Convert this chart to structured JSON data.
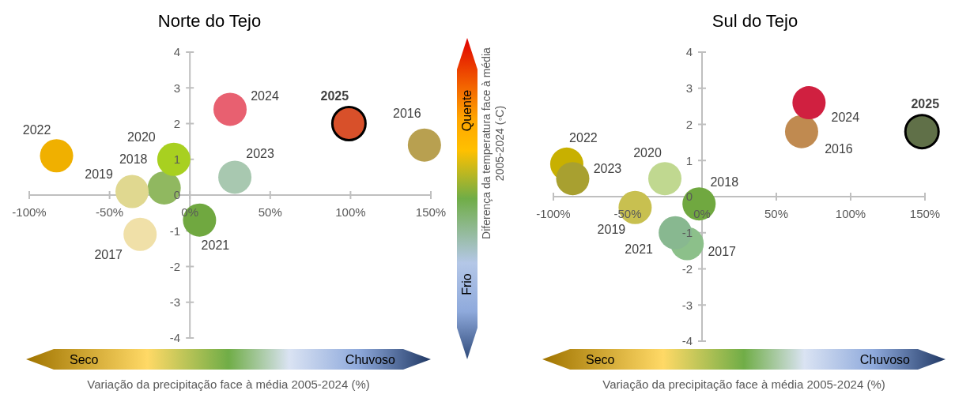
{
  "chart_data": [
    {
      "type": "scatter",
      "title": "Norte do Tejo",
      "xlabel": "Variação da precipitação face à média 2005-2024 (%)",
      "ylabel": "Diferença da temperatura face à média 2005-2024 (◦C)",
      "xlim": [
        -100,
        150
      ],
      "xticks": [
        {
          "value": -100,
          "label": "-100%"
        },
        {
          "value": -50,
          "label": "-50%"
        },
        {
          "value": 0,
          "label": "0%"
        },
        {
          "value": 50,
          "label": "50%"
        },
        {
          "value": 100,
          "label": "100%"
        },
        {
          "value": 150,
          "label": "150%"
        }
      ],
      "ylim": [
        -4,
        4
      ],
      "yticks": [
        -4,
        -3,
        -2,
        -1,
        0,
        1,
        2,
        3,
        4
      ],
      "marker": "circle",
      "series": [
        {
          "x": [
            146,
            -31,
            -16,
            -36,
            -10,
            6,
            -83,
            28,
            25
          ],
          "values": [
            1.4,
            -1.1,
            0.2,
            0.1,
            1.0,
            -0.7,
            1.1,
            0.5,
            2.4
          ],
          "colors": [
            "#b8a050",
            "#f0e0a8",
            "#90b860",
            "#e0d890",
            "#a8d020",
            "#70a840",
            "#f0b000",
            "#a8c8b0",
            "#e86070"
          ]
        },
        {
          "x": [
            99
          ],
          "values": [
            2.0
          ],
          "colors": [
            "#d8502a"
          ]
        }
      ],
      "annotations": [
        {
          "text": "2016",
          "x": 146,
          "y": 1.4
        },
        {
          "text": "2017",
          "x": -31,
          "y": -1.1
        },
        {
          "text": "2018",
          "x": -16,
          "y": 0.2
        },
        {
          "text": "2019",
          "x": -36,
          "y": 0.1
        },
        {
          "text": "2020",
          "x": -10,
          "y": 1.0
        },
        {
          "text": "2021",
          "x": 6,
          "y": -0.7
        },
        {
          "text": "2022",
          "x": -83,
          "y": 1.1
        },
        {
          "text": "2023",
          "x": 28,
          "y": 0.5
        },
        {
          "text": "2024",
          "x": 25,
          "y": 2.4
        },
        {
          "text": "2025",
          "x": 99,
          "y": 2.0
        },
        "Seco",
        "Chuvoso",
        "Quente",
        "Frio"
      ]
    },
    {
      "type": "scatter",
      "title": "Sul do Tejo",
      "xlabel": "Variação da precipitação face à média 2005-2024 (%)",
      "xlim": [
        -100,
        150
      ],
      "xticks": [
        {
          "value": -100,
          "label": "-100%"
        },
        {
          "value": -50,
          "label": "-50%"
        },
        {
          "value": 0,
          "label": "0%"
        },
        {
          "value": 50,
          "label": "50%"
        },
        {
          "value": 100,
          "label": "100%"
        },
        {
          "value": 150,
          "label": "150%"
        }
      ],
      "ylim": [
        -4,
        4
      ],
      "yticks": [
        -4,
        -3,
        -2,
        -1,
        0,
        1,
        2,
        3,
        4
      ],
      "marker": "circle",
      "series": [
        {
          "x": [
            67,
            -10,
            -2,
            -45,
            -25,
            -18,
            -91,
            -87,
            72
          ],
          "values": [
            1.8,
            -1.3,
            -0.2,
            -0.3,
            0.5,
            -1.0,
            0.9,
            0.5,
            2.6
          ],
          "colors": [
            "#c08a50",
            "#8cc08a",
            "#70a840",
            "#c8c050",
            "#c0d890",
            "#88b890",
            "#c8b000",
            "#a8a030",
            "#d02040"
          ]
        },
        {
          "x": [
            148
          ],
          "values": [
            1.8
          ],
          "colors": [
            "#607048"
          ]
        }
      ],
      "annotations": [
        {
          "text": "2016",
          "x": 67,
          "y": 1.8
        },
        {
          "text": "2017",
          "x": -10,
          "y": -1.3
        },
        {
          "text": "2018",
          "x": -2,
          "y": -0.2
        },
        {
          "text": "2019",
          "x": -45,
          "y": -0.3
        },
        {
          "text": "2020",
          "x": -25,
          "y": 0.5
        },
        {
          "text": "2021",
          "x": -18,
          "y": -1.0
        },
        {
          "text": "2022",
          "x": -91,
          "y": 0.9
        },
        {
          "text": "2023",
          "x": -87,
          "y": 0.5
        },
        {
          "text": "2024",
          "x": 72,
          "y": 2.6
        },
        {
          "text": "2025",
          "x": 148,
          "y": 1.8
        },
        "Seco",
        "Chuvoso"
      ]
    }
  ]
}
